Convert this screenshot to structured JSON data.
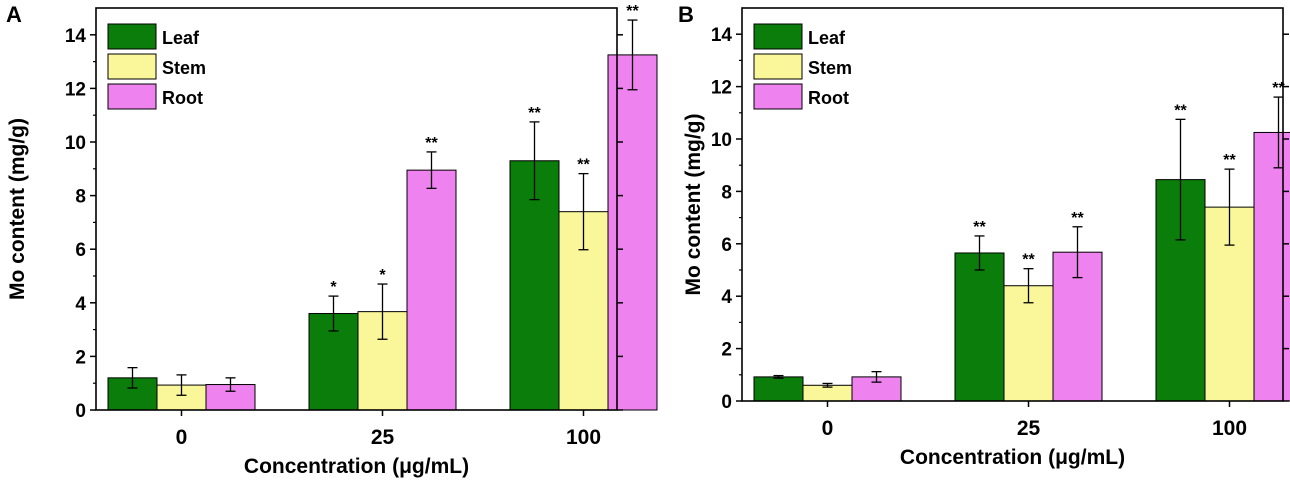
{
  "figure": {
    "legend_position": "top-left",
    "colors": {
      "Leaf": "#0a7d0a",
      "Stem": "#f9f79a",
      "Root": "#ee82ee",
      "axis": "#000000"
    }
  },
  "chart_data": [
    {
      "panel": "A",
      "type": "bar",
      "xlabel": "Concentration (μg/mL)",
      "ylabel": "Mo content (mg/g)",
      "ylim": [
        0,
        15
      ],
      "yticks": [
        0,
        2,
        4,
        6,
        8,
        10,
        12,
        14
      ],
      "categories": [
        "0",
        "25",
        "100"
      ],
      "series": [
        {
          "name": "Leaf",
          "values": [
            1.2,
            3.6,
            9.3
          ],
          "errors": [
            0.38,
            0.65,
            1.45
          ],
          "sig": [
            "",
            "*",
            "**"
          ]
        },
        {
          "name": "Stem",
          "values": [
            0.93,
            3.67,
            7.4
          ],
          "errors": [
            0.38,
            1.03,
            1.42
          ],
          "sig": [
            "",
            "*",
            "**"
          ]
        },
        {
          "name": "Root",
          "values": [
            0.95,
            8.95,
            13.25
          ],
          "errors": [
            0.25,
            0.68,
            1.3
          ],
          "sig": [
            "",
            "**",
            "**"
          ]
        }
      ]
    },
    {
      "panel": "B",
      "type": "bar",
      "xlabel": "Concentration (μg/mL)",
      "ylabel": "Mo content (mg/g)",
      "ylim": [
        0,
        15
      ],
      "yticks": [
        0,
        2,
        4,
        6,
        8,
        10,
        12,
        14
      ],
      "categories": [
        "0",
        "25",
        "100"
      ],
      "series": [
        {
          "name": "Leaf",
          "values": [
            0.92,
            5.65,
            8.45
          ],
          "errors": [
            0.05,
            0.65,
            2.3
          ],
          "sig": [
            "",
            "**",
            "**"
          ]
        },
        {
          "name": "Stem",
          "values": [
            0.6,
            4.4,
            7.4
          ],
          "errors": [
            0.07,
            0.65,
            1.45
          ],
          "sig": [
            "",
            "**",
            "**"
          ]
        },
        {
          "name": "Root",
          "values": [
            0.92,
            5.68,
            10.25
          ],
          "errors": [
            0.2,
            0.97,
            1.35
          ],
          "sig": [
            "",
            "**",
            "**"
          ]
        }
      ]
    }
  ]
}
